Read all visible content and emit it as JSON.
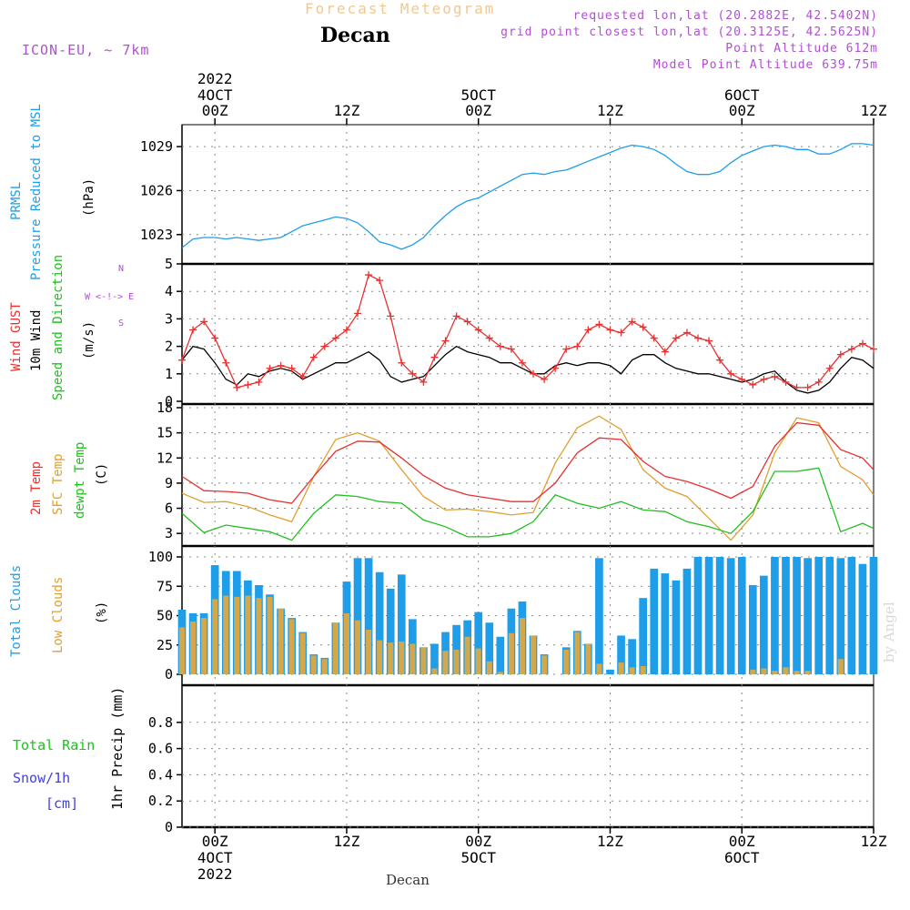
{
  "header": {
    "title": "Forecast Meteogram",
    "location": "Decan",
    "model": "ICON-EU, ~ 7km",
    "requested": "requested lon,lat (20.2882E, 42.5402N)",
    "gridpoint": "grid point closest lon,lat (20.3125E, 42.5625N)",
    "point_alt": "Point Altitude 612m",
    "model_alt": "Model Point Altitude 639.75m",
    "watermark": "by Angel",
    "bottom_label": "Decan"
  },
  "time_axis": {
    "top_labels": [
      {
        "line1": "2022",
        "line2": "4OCT",
        "line3": "00Z"
      },
      {
        "line1": "",
        "line2": "",
        "line3": "12Z"
      },
      {
        "line1": "",
        "line2": "5OCT",
        "line3": "00Z"
      },
      {
        "line1": "",
        "line2": "",
        "line3": "12Z"
      },
      {
        "line1": "",
        "line2": "6OCT",
        "line3": "00Z"
      },
      {
        "line1": "",
        "line2": "",
        "line3": "12Z"
      }
    ],
    "bottom_labels": [
      {
        "line1": "00Z",
        "line2": "4OCT",
        "line3": "2022"
      },
      {
        "line1": "12Z",
        "line2": "",
        "line3": ""
      },
      {
        "line1": "00Z",
        "line2": "5OCT",
        "line3": ""
      },
      {
        "line1": "12Z",
        "line2": "",
        "line3": ""
      },
      {
        "line1": "00Z",
        "line2": "6OCT",
        "line3": ""
      },
      {
        "line1": "12Z",
        "line2": "",
        "line3": ""
      }
    ],
    "hours_from": -3,
    "hours_to": 60
  },
  "panel_labels": {
    "pressure": {
      "a": "PRMSL",
      "b": "Pressure Reduced to MSL",
      "unit": "(hPa)"
    },
    "wind": {
      "gust": "Wind GUST",
      "wind": "10m Wind",
      "dir": "Speed and Direction",
      "unit": "(m/s)",
      "compass_n": "N",
      "compass_s": "S",
      "compass_we": "W <-!-> E"
    },
    "temp": {
      "t2m": "2m Temp",
      "sfc": "SFC Temp",
      "dew": "dewpt Temp",
      "unit": "(C)"
    },
    "clouds": {
      "total": "Total Clouds",
      "low": "Low Clouds",
      "unit": "(%)"
    },
    "precip": {
      "rain": "Total  Rain",
      "snow": "Snow/1h",
      "snow_unit": "[cm]",
      "axis": "1hr Precip (mm)"
    }
  },
  "colors": {
    "pressure": "#1e9ee8",
    "gust": "#e83030",
    "wind": "#000000",
    "t2m": "#e83030",
    "sfc": "#e0a030",
    "dew": "#20c020",
    "total_clouds": "#1e9ee8",
    "low_clouds": "#d4a84a",
    "header_purple": "#b050d0",
    "title_orange": "#f0c890"
  },
  "chart_data": [
    {
      "type": "line",
      "id": "pressure",
      "ylim": [
        1021,
        1030
      ],
      "yticks": [
        1023,
        1026,
        1029
      ],
      "series": [
        {
          "key": "prmsl",
          "x": [
            -3,
            -2,
            -1,
            0,
            1,
            2,
            3,
            4,
            5,
            6,
            7,
            8,
            9,
            10,
            11,
            12,
            13,
            14,
            15,
            16,
            17,
            18,
            19,
            20,
            21,
            22,
            23,
            24,
            25,
            26,
            27,
            28,
            29,
            30,
            31,
            32,
            33,
            34,
            35,
            36,
            37,
            38,
            39,
            40,
            41,
            42,
            43,
            44,
            45,
            46,
            47,
            48,
            49,
            50,
            51,
            52,
            53,
            54,
            55,
            56,
            57,
            58,
            59,
            60
          ],
          "values": [
            1022.1,
            1022.7,
            1022.8,
            1022.8,
            1022.7,
            1022.8,
            1022.7,
            1022.6,
            1022.7,
            1022.8,
            1023.2,
            1023.6,
            1023.8,
            1024.0,
            1024.2,
            1024.1,
            1023.8,
            1023.2,
            1022.5,
            1022.3,
            1022.0,
            1022.3,
            1022.8,
            1023.6,
            1024.3,
            1024.9,
            1025.3,
            1025.5,
            1025.9,
            1026.3,
            1026.7,
            1027.1,
            1027.2,
            1027.1,
            1027.3,
            1027.4,
            1027.7,
            1028.0,
            1028.3,
            1028.6,
            1028.9,
            1029.1,
            1029.0,
            1028.8,
            1028.4,
            1027.8,
            1027.3,
            1027.1,
            1027.1,
            1027.3,
            1027.9,
            1028.4,
            1028.7,
            1029.0,
            1029.1,
            1029.0,
            1028.8,
            1028.8,
            1028.5,
            1028.5,
            1028.8,
            1029.2,
            1029.2,
            1029.1
          ]
        }
      ]
    },
    {
      "type": "line",
      "id": "wind",
      "ylim": [
        0,
        5
      ],
      "yticks": [
        0,
        1,
        2,
        3,
        4,
        5
      ],
      "series": [
        {
          "key": "gust",
          "x": [
            -3,
            -2,
            -1,
            0,
            1,
            2,
            3,
            4,
            5,
            6,
            7,
            8,
            9,
            10,
            11,
            12,
            13,
            14,
            15,
            16,
            17,
            18,
            19,
            20,
            21,
            22,
            23,
            24,
            25,
            26,
            27,
            28,
            29,
            30,
            31,
            32,
            33,
            34,
            35,
            36,
            37,
            38,
            39,
            40,
            41,
            42,
            43,
            44,
            45,
            46,
            47,
            48,
            49,
            50,
            51,
            52,
            53,
            54,
            55,
            56,
            57,
            58,
            59,
            60
          ],
          "values": [
            1.5,
            2.6,
            2.9,
            2.3,
            1.4,
            0.5,
            0.6,
            0.7,
            1.2,
            1.3,
            1.2,
            0.9,
            1.6,
            2.0,
            2.3,
            2.6,
            3.2,
            4.6,
            4.4,
            3.1,
            1.4,
            1.0,
            0.7,
            1.6,
            2.2,
            3.1,
            2.9,
            2.6,
            2.3,
            2.0,
            1.9,
            1.4,
            1.0,
            0.8,
            1.2,
            1.9,
            2.0,
            2.6,
            2.8,
            2.6,
            2.5,
            2.9,
            2.7,
            2.3,
            1.8,
            2.3,
            2.5,
            2.3,
            2.2,
            1.5,
            1.0,
            0.8,
            0.6,
            0.8,
            0.9,
            0.7,
            0.5,
            0.5,
            0.7,
            1.2,
            1.7,
            1.9,
            2.1,
            1.9
          ]
        },
        {
          "key": "wind",
          "x": [
            -3,
            -2,
            -1,
            0,
            1,
            2,
            3,
            4,
            5,
            6,
            7,
            8,
            9,
            10,
            11,
            12,
            13,
            14,
            15,
            16,
            17,
            18,
            19,
            20,
            21,
            22,
            23,
            24,
            25,
            26,
            27,
            28,
            29,
            30,
            31,
            32,
            33,
            34,
            35,
            36,
            37,
            38,
            39,
            40,
            41,
            42,
            43,
            44,
            45,
            46,
            47,
            48,
            49,
            50,
            51,
            52,
            53,
            54,
            55,
            56,
            57,
            58,
            59,
            60
          ],
          "values": [
            1.5,
            2.0,
            1.9,
            1.4,
            0.8,
            0.6,
            1.0,
            0.9,
            1.1,
            1.2,
            1.1,
            0.8,
            1.0,
            1.2,
            1.4,
            1.4,
            1.6,
            1.8,
            1.5,
            0.9,
            0.7,
            0.8,
            0.9,
            1.3,
            1.7,
            2.0,
            1.8,
            1.7,
            1.6,
            1.4,
            1.4,
            1.2,
            1.0,
            1.0,
            1.3,
            1.4,
            1.3,
            1.4,
            1.4,
            1.3,
            1.0,
            1.5,
            1.7,
            1.7,
            1.4,
            1.2,
            1.1,
            1.0,
            1.0,
            0.9,
            0.8,
            0.7,
            0.8,
            1.0,
            1.1,
            0.7,
            0.4,
            0.3,
            0.4,
            0.7,
            1.2,
            1.6,
            1.5,
            1.2
          ]
        }
      ]
    },
    {
      "type": "line",
      "id": "temperature",
      "ylim": [
        1.5,
        18
      ],
      "yticks": [
        3,
        6,
        9,
        12,
        15,
        18
      ],
      "series": [
        {
          "key": "t2m",
          "x": [
            -3,
            -1,
            1,
            3,
            5,
            7,
            9,
            11,
            13,
            15,
            17,
            19,
            21,
            23,
            25,
            27,
            29,
            31,
            33,
            35,
            37,
            39,
            41,
            43,
            45,
            47,
            49,
            51,
            53,
            55,
            57,
            59,
            60
          ],
          "values": [
            9.8,
            8.1,
            8.0,
            7.8,
            7.0,
            6.6,
            9.8,
            12.8,
            14.0,
            13.9,
            12.0,
            9.9,
            8.4,
            7.6,
            7.2,
            6.8,
            6.8,
            9.0,
            12.6,
            14.4,
            14.2,
            11.6,
            9.8,
            9.2,
            8.3,
            7.2,
            8.6,
            13.4,
            16.2,
            15.9,
            13.0,
            12.0,
            10.6
          ]
        },
        {
          "key": "sfc",
          "x": [
            -3,
            -1,
            1,
            3,
            5,
            7,
            9,
            11,
            13,
            15,
            17,
            19,
            21,
            23,
            25,
            27,
            29,
            31,
            33,
            35,
            37,
            39,
            41,
            43,
            45,
            47,
            49,
            51,
            53,
            55,
            57,
            59,
            60
          ],
          "values": [
            7.8,
            6.7,
            6.8,
            6.2,
            5.2,
            4.4,
            9.8,
            14.2,
            15.0,
            14.0,
            10.6,
            7.4,
            5.8,
            5.9,
            5.6,
            5.2,
            5.5,
            11.4,
            15.6,
            17.0,
            15.4,
            10.6,
            8.4,
            7.4,
            4.8,
            2.2,
            5.2,
            12.6,
            16.8,
            16.2,
            11.0,
            9.4,
            7.6
          ]
        },
        {
          "key": "dew",
          "x": [
            -3,
            -1,
            1,
            3,
            5,
            7,
            9,
            11,
            13,
            15,
            17,
            19,
            21,
            23,
            25,
            27,
            29,
            31,
            33,
            35,
            37,
            39,
            41,
            43,
            45,
            47,
            49,
            51,
            53,
            55,
            57,
            59,
            60
          ],
          "values": [
            5.4,
            3.1,
            4.0,
            3.6,
            3.2,
            2.2,
            5.4,
            7.6,
            7.4,
            6.8,
            6.6,
            4.6,
            3.8,
            2.6,
            2.6,
            3.0,
            4.4,
            7.6,
            6.6,
            6.0,
            6.8,
            5.8,
            5.6,
            4.4,
            3.8,
            3.0,
            5.6,
            10.4,
            10.4,
            10.8,
            3.2,
            4.2,
            3.6
          ]
        }
      ]
    },
    {
      "type": "bar",
      "id": "clouds",
      "ylim": [
        0,
        100
      ],
      "yticks": [
        0,
        25,
        50,
        75,
        100
      ],
      "categories": [
        -3,
        -2,
        -1,
        0,
        1,
        2,
        3,
        4,
        5,
        6,
        7,
        8,
        9,
        10,
        11,
        12,
        13,
        14,
        15,
        16,
        17,
        18,
        19,
        20,
        21,
        22,
        23,
        24,
        25,
        26,
        27,
        28,
        29,
        30,
        31,
        32,
        33,
        34,
        35,
        36,
        37,
        38,
        39,
        40,
        41,
        42,
        43,
        44,
        45,
        46,
        47,
        48,
        49,
        50,
        51,
        52,
        53,
        54,
        55,
        56,
        57,
        58,
        59,
        60
      ],
      "series": [
        {
          "key": "total",
          "values": [
            55,
            52,
            52,
            93,
            88,
            88,
            80,
            76,
            68,
            56,
            48,
            36,
            17,
            14,
            44,
            79,
            99,
            99,
            87,
            73,
            85,
            47,
            23,
            26,
            36,
            42,
            46,
            53,
            44,
            32,
            56,
            62,
            33,
            17,
            0,
            23,
            37,
            26,
            99,
            4,
            33,
            30,
            65,
            90,
            86,
            80,
            90,
            100,
            100,
            100,
            99,
            100,
            76,
            84,
            100,
            100,
            100,
            99,
            100,
            100,
            99,
            100,
            94,
            100
          ],
          "low": [
            40,
            45,
            48,
            64,
            67,
            66,
            67,
            65,
            66,
            56,
            47,
            35,
            16,
            13,
            44,
            52,
            46,
            38,
            29,
            27,
            28,
            26,
            23,
            5,
            20,
            21,
            32,
            22,
            11,
            2,
            35,
            48,
            33,
            16,
            0,
            21,
            36,
            26,
            9,
            0,
            10,
            6,
            7,
            0,
            0,
            0,
            0,
            0,
            0,
            0,
            0,
            0,
            4,
            5,
            3,
            6,
            3,
            3,
            0,
            0,
            13,
            0,
            0,
            0
          ]
        }
      ]
    },
    {
      "type": "bar",
      "id": "precip",
      "ylim": [
        0,
        1
      ],
      "yticks": [
        0,
        0.2,
        0.4,
        0.6,
        0.8
      ],
      "series": [
        {
          "key": "rain",
          "values": []
        }
      ]
    }
  ]
}
